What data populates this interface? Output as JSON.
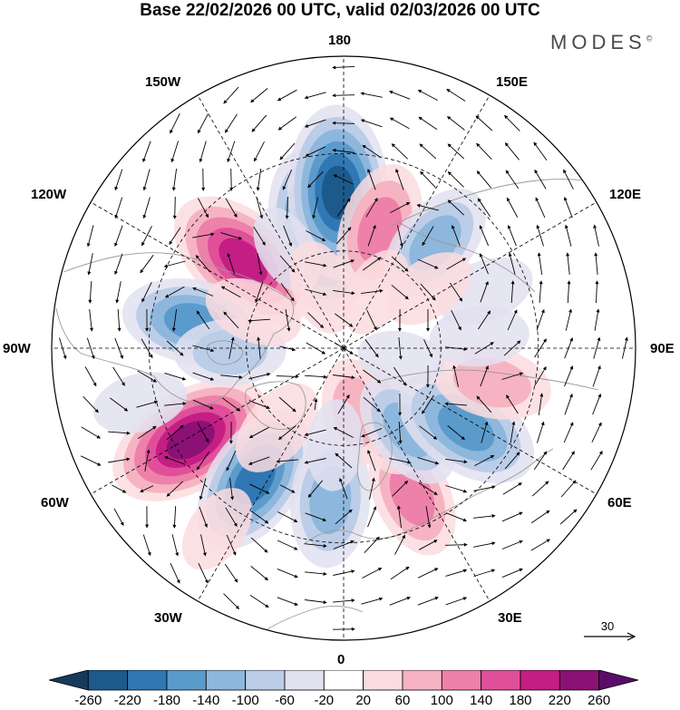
{
  "title": "Base 22/02/2026 00 UTC, valid 02/03/2026 00 UTC",
  "brand": "MODES",
  "brand_mark": "©",
  "longitude_labels": {
    "lon_180": "180",
    "lon_150e": "150E",
    "lon_120e": "120E",
    "lon_90e": "90E",
    "lon_60e": "60E",
    "lon_30e": "30E",
    "lon_0": "0",
    "lon_30w": "30W",
    "lon_60w": "60W",
    "lon_90w": "90W",
    "lon_120w": "120W",
    "lon_150w": "150W"
  },
  "reference_vector": {
    "value": "30"
  },
  "colorbar": {
    "ticks": [
      "-260",
      "-220",
      "-180",
      "-140",
      "-100",
      "-60",
      "-20",
      "20",
      "60",
      "100",
      "140",
      "180",
      "220",
      "260"
    ],
    "colors": [
      "#163a5c",
      "#1d5a8c",
      "#2f78b3",
      "#5b9bcc",
      "#8db7dc",
      "#bccde8",
      "#e2e1f0",
      "#ffffff",
      "#fbdcdf",
      "#f6b4c2",
      "#ee81aa",
      "#e0509a",
      "#c41e85",
      "#8c1174",
      "#5a0c69"
    ]
  },
  "anomaly_centers": [
    {
      "lon": -168,
      "lat": 53,
      "value": -230
    },
    {
      "lon": -178,
      "lat": 42,
      "value": -250
    },
    {
      "lon": 163,
      "lat": 52,
      "value": 150
    },
    {
      "lon": -131,
      "lat": 49,
      "value": 220
    },
    {
      "lon": 139,
      "lat": 47,
      "value": -130
    },
    {
      "lon": -100,
      "lat": 43,
      "value": -170
    },
    {
      "lon": -59,
      "lat": 35,
      "value": 240
    },
    {
      "lon": -34,
      "lat": 41,
      "value": -200
    },
    {
      "lon": -5,
      "lat": 43,
      "value": -150
    },
    {
      "lon": 25,
      "lat": 40,
      "value": 130
    },
    {
      "lon": 28,
      "lat": 66,
      "value": 120
    },
    {
      "lon": 10,
      "lat": 70,
      "value": 80
    },
    {
      "lon": 38,
      "lat": 58,
      "value": -120
    },
    {
      "lon": 57,
      "lat": 45,
      "value": -190
    },
    {
      "lon": 77,
      "lat": 43,
      "value": 110
    },
    {
      "lon": 95,
      "lat": 48,
      "value": -60
    },
    {
      "lon": 112,
      "lat": 43,
      "value": -60
    },
    {
      "lon": -88,
      "lat": 55,
      "value": -90
    },
    {
      "lon": -112,
      "lat": 60,
      "value": 60
    },
    {
      "lon": -150,
      "lat": 55,
      "value": -40
    },
    {
      "lon": -40,
      "lat": 58,
      "value": 70
    },
    {
      "lon": 150,
      "lat": 70,
      "value": 40
    },
    {
      "lon": -160,
      "lat": 70,
      "value": 50
    },
    {
      "lon": -35,
      "lat": 22,
      "value": 40
    },
    {
      "lon": -5,
      "lat": 60,
      "value": -40
    },
    {
      "lon": 125,
      "lat": 58,
      "value": 50
    },
    {
      "lon": 80,
      "lat": 72,
      "value": -30
    },
    {
      "lon": -75,
      "lat": 25,
      "value": -50
    }
  ]
}
